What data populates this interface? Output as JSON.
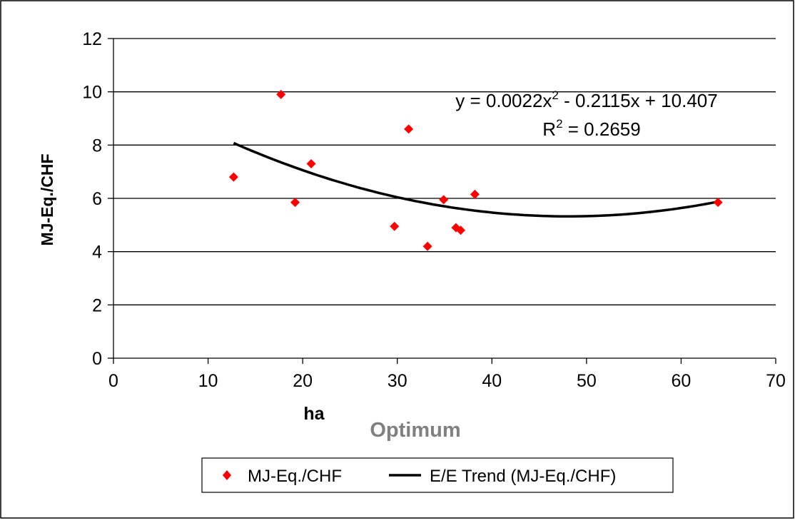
{
  "chart_data": {
    "type": "scatter",
    "xlabel": "ha",
    "ylabel": "MJ-Eq./CHF",
    "annotation_text": "Optimum",
    "xlim": [
      0,
      70
    ],
    "ylim": [
      0,
      12
    ],
    "x_ticks": [
      "0",
      "10",
      "20",
      "30",
      "40",
      "50",
      "60",
      "70"
    ],
    "y_ticks": [
      "0",
      "2",
      "4",
      "6",
      "8",
      "10",
      "12"
    ],
    "grid": "horizontal",
    "legend_position": "bottom",
    "series": [
      {
        "name": "MJ-Eq./CHF",
        "kind": "scatter",
        "marker": "diamond",
        "color": "#ff0000",
        "points": [
          {
            "x": 12.7,
            "y": 6.8
          },
          {
            "x": 17.7,
            "y": 9.9
          },
          {
            "x": 19.2,
            "y": 5.85
          },
          {
            "x": 20.9,
            "y": 7.3
          },
          {
            "x": 29.7,
            "y": 4.95
          },
          {
            "x": 31.2,
            "y": 8.6
          },
          {
            "x": 33.2,
            "y": 4.2
          },
          {
            "x": 34.9,
            "y": 5.95
          },
          {
            "x": 36.2,
            "y": 4.9
          },
          {
            "x": 36.7,
            "y": 4.8
          },
          {
            "x": 38.2,
            "y": 6.15
          },
          {
            "x": 63.9,
            "y": 5.85
          }
        ]
      },
      {
        "name": "E/E Trend (MJ-Eq./CHF)",
        "kind": "trendline",
        "color": "#000000",
        "x_range": [
          12.7,
          63.9
        ],
        "coefficients": {
          "a": 0.0022,
          "b": -0.2115,
          "c": 10.407
        }
      }
    ],
    "trend_equation": {
      "prefix": "y = 0.0022x",
      "exp": "2",
      "suffix": " - 0.2115x + 10.407"
    },
    "r_squared": {
      "prefix": "R",
      "exp": "2",
      "suffix": " = 0.2659"
    }
  }
}
